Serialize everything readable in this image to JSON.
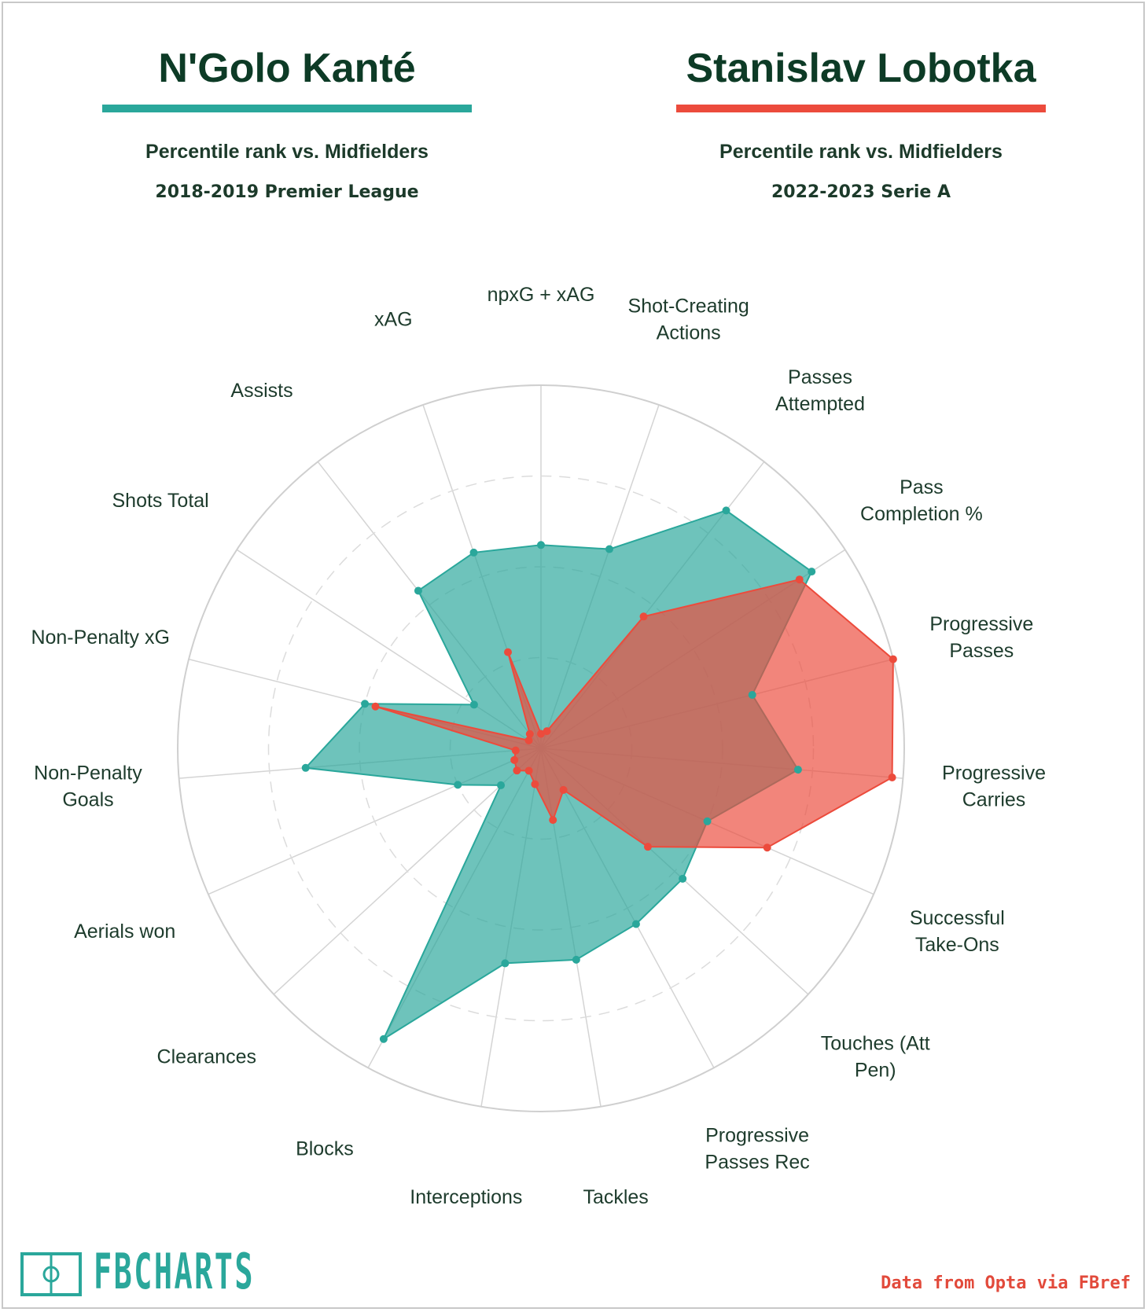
{
  "players": [
    {
      "name": "N'Golo Kanté",
      "subtitle": "Percentile rank vs. Midfielders",
      "season": "2018-2019 Premier League",
      "color": "#2aa79b"
    },
    {
      "name": "Stanislav Lobotka",
      "subtitle": "Percentile rank vs. Midfielders",
      "season": "2022-2023 Serie A",
      "color": "#ec4b3c"
    }
  ],
  "chart_data": {
    "type": "radar",
    "categories": [
      "npxG + xAG",
      "Shot-Creating Actions",
      "Passes Attempted",
      "Pass Completion %",
      "Progressive Passes",
      "Progressive Carries",
      "Successful Take-Ons",
      "Touches (Att Pen)",
      "Progressive Passes Rec",
      "Tackles",
      "Interceptions",
      "Blocks",
      "Clearances",
      "Aerials won",
      "Non-Penalty Goals",
      "Non-Penalty xG",
      "Shots Total",
      "Assists",
      "xAG"
    ],
    "category_lines": [
      [
        "npxG + xAG"
      ],
      [
        "Shot-Creating",
        "Actions"
      ],
      [
        "Passes",
        "Attempted"
      ],
      [
        "Pass",
        "Completion %"
      ],
      [
        "Progressive",
        "Passes"
      ],
      [
        "Progressive",
        "Carries"
      ],
      [
        "Successful",
        "Take-Ons"
      ],
      [
        "Touches (Att",
        "Pen)"
      ],
      [
        "Progressive",
        "Passes Rec"
      ],
      [
        "Tackles"
      ],
      [
        "Interceptions"
      ],
      [
        "Blocks"
      ],
      [
        "Clearances"
      ],
      [
        "Aerials won"
      ],
      [
        "Non-Penalty",
        "Goals"
      ],
      [
        "Non-Penalty xG"
      ],
      [
        "Shots Total"
      ],
      [
        "Assists"
      ],
      [
        "xAG"
      ]
    ],
    "range": [
      0,
      100
    ],
    "rings": [
      25,
      50,
      75,
      100
    ],
    "series": [
      {
        "name": "N'Golo Kanté",
        "color": "#2aa79b",
        "values": [
          56,
          58,
          83,
          89,
          60,
          71,
          50,
          53,
          55,
          59,
          60,
          91,
          15,
          25,
          65,
          50,
          22,
          55,
          57
        ]
      },
      {
        "name": "Stanislav Lobotka",
        "color": "#ec4b3c",
        "values": [
          4,
          5,
          46,
          85,
          100,
          97,
          68,
          40,
          13,
          20,
          10,
          7,
          9,
          8,
          7,
          47,
          4,
          5,
          28
        ]
      }
    ]
  },
  "branding": {
    "logo": "FBCHARTS",
    "logo_color": "#2aa79b"
  },
  "source": {
    "text": "Data from Opta via FBref",
    "color": "#e24a3b"
  }
}
